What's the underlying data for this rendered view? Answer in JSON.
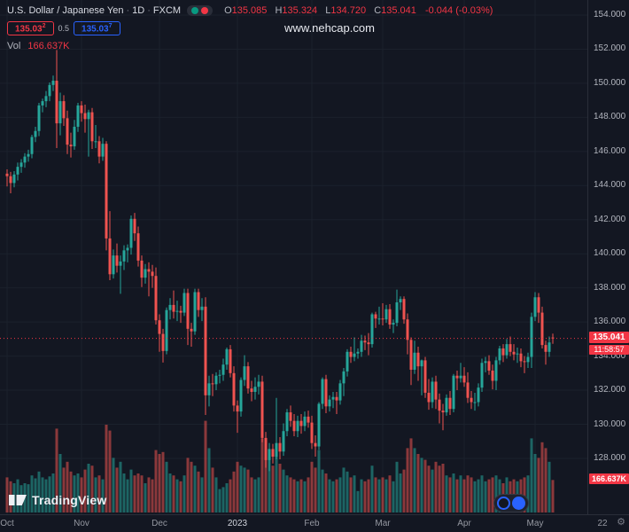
{
  "header": {
    "symbol": "U.S. Dollar / Japanese Yen",
    "sep": "·",
    "interval": "1D",
    "exchange": "FXCM",
    "ohlc": {
      "o_label": "O",
      "o": "135.085",
      "h_label": "H",
      "h": "135.324",
      "l_label": "L",
      "l": "134.720",
      "c_label": "C",
      "c": "135.041",
      "change": "-0.044 (-0.03%)"
    },
    "bid": {
      "main": "135.03",
      "sup": "2"
    },
    "spread": "0.5",
    "ask": {
      "main": "135.03",
      "sup": "7"
    },
    "vol_label": "Vol",
    "vol_value": "166.637K"
  },
  "watermark": "www.nehcap.com",
  "logo": {
    "text": "TradingView"
  },
  "price_axis": {
    "labels": [
      {
        "text": "154.000",
        "value": 154
      },
      {
        "text": "152.000",
        "value": 152
      },
      {
        "text": "150.000",
        "value": 150
      },
      {
        "text": "148.000",
        "value": 148
      },
      {
        "text": "146.000",
        "value": 146
      },
      {
        "text": "144.000",
        "value": 144
      },
      {
        "text": "142.000",
        "value": 142
      },
      {
        "text": "140.000",
        "value": 140
      },
      {
        "text": "138.000",
        "value": 138
      },
      {
        "text": "136.000",
        "value": 136
      },
      {
        "text": "134.000",
        "value": 134
      },
      {
        "text": "132.000",
        "value": 132
      },
      {
        "text": "130.000",
        "value": 130
      },
      {
        "text": "128.000",
        "value": 128
      }
    ],
    "last_price_label": "135.041",
    "countdown": "11:58:57",
    "volume_label": "166.637K"
  },
  "time_axis": {
    "labels": [
      {
        "text": "Oct",
        "bar": 0
      },
      {
        "text": "Nov",
        "bar": 21
      },
      {
        "text": "Dec",
        "bar": 43
      },
      {
        "text": "2023",
        "bar": 65,
        "emphasis": true
      },
      {
        "text": "Feb",
        "bar": 86
      },
      {
        "text": "Mar",
        "bar": 106
      },
      {
        "text": "Apr",
        "bar": 129
      },
      {
        "text": "May",
        "bar": 149
      },
      {
        "text": "22",
        "bar": 168
      }
    ]
  },
  "colors": {
    "bg": "#131722",
    "up": "#26a69a",
    "down": "#ef5350",
    "vol_up": "rgba(38,166,154,0.55)",
    "vol_down": "rgba(239,83,80,0.55)",
    "accent_red": "#f23645",
    "accent_blue": "#2962ff",
    "grid": "#1b212c",
    "axis_text": "#b2b5be"
  },
  "chart_data": {
    "type": "candlestick",
    "title": "U.S. Dollar / Japanese Yen",
    "symbol": "USD/JPY",
    "interval": "1D",
    "exchange": "FXCM",
    "last_price": 135.041,
    "last_ohlc": {
      "o": 135.085,
      "h": 135.324,
      "l": 134.72,
      "c": 135.041,
      "change": -0.044,
      "change_pct": -0.03
    },
    "last_volume_k": 166.637,
    "y_axis_range": [
      126.5,
      154.8
    ],
    "x_range_labels": [
      "Oct",
      "Nov",
      "Dec",
      "2023",
      "Feb",
      "Mar",
      "Apr",
      "May"
    ],
    "volume_pane": true,
    "candles_format": [
      "open",
      "high",
      "low",
      "close",
      "volume_k"
    ],
    "candles": [
      [
        144.7,
        144.95,
        143.95,
        144.55,
        180
      ],
      [
        144.55,
        144.8,
        143.55,
        144.15,
        160
      ],
      [
        144.15,
        144.85,
        143.9,
        144.65,
        150
      ],
      [
        144.65,
        145.35,
        144.3,
        145.1,
        170
      ],
      [
        145.1,
        145.55,
        144.75,
        145.35,
        140
      ],
      [
        145.35,
        145.9,
        145.05,
        145.7,
        150
      ],
      [
        145.7,
        146.1,
        145.4,
        145.85,
        145
      ],
      [
        145.85,
        146.98,
        145.6,
        146.85,
        190
      ],
      [
        146.85,
        147.45,
        146.55,
        147.2,
        175
      ],
      [
        147.2,
        148.85,
        146.9,
        148.7,
        210
      ],
      [
        148.7,
        149.1,
        148.3,
        148.95,
        180
      ],
      [
        148.95,
        149.55,
        148.6,
        149.25,
        170
      ],
      [
        149.25,
        150.05,
        148.95,
        149.9,
        185
      ],
      [
        149.9,
        150.45,
        149.55,
        150.15,
        200
      ],
      [
        150.15,
        151.95,
        146.2,
        147.65,
        430
      ],
      [
        147.65,
        149.45,
        146.95,
        148.95,
        300
      ],
      [
        148.95,
        149.3,
        147.5,
        147.95,
        230
      ],
      [
        147.95,
        148.4,
        145.85,
        146.4,
        260
      ],
      [
        146.4,
        147.1,
        145.65,
        146.3,
        210
      ],
      [
        146.3,
        147.85,
        146.1,
        147.45,
        190
      ],
      [
        147.45,
        148.85,
        147.15,
        148.7,
        200
      ],
      [
        148.7,
        148.95,
        147.75,
        148.25,
        180
      ],
      [
        148.25,
        148.75,
        147.1,
        147.9,
        220
      ],
      [
        147.9,
        148.45,
        145.7,
        148.3,
        250
      ],
      [
        148.3,
        148.55,
        146.15,
        146.6,
        240
      ],
      [
        146.6,
        147.55,
        146.2,
        146.6,
        180
      ],
      [
        146.6,
        146.9,
        145.3,
        145.7,
        190
      ],
      [
        145.7,
        146.8,
        145.45,
        146.45,
        170
      ],
      [
        146.45,
        146.6,
        140.2,
        140.9,
        450
      ],
      [
        140.9,
        142.5,
        138.45,
        138.8,
        420
      ],
      [
        138.8,
        140.25,
        138.55,
        139.9,
        280
      ],
      [
        139.9,
        140.6,
        138.9,
        139.3,
        230
      ],
      [
        139.3,
        139.9,
        137.65,
        139.55,
        260
      ],
      [
        139.55,
        140.5,
        139.05,
        140.2,
        200
      ],
      [
        140.2,
        140.55,
        139.5,
        140.35,
        170
      ],
      [
        140.35,
        142.25,
        139.95,
        142.05,
        220
      ],
      [
        142.05,
        142.4,
        140.75,
        141.2,
        190
      ],
      [
        141.2,
        141.6,
        139.25,
        139.6,
        200
      ],
      [
        139.6,
        139.9,
        138.05,
        138.6,
        190
      ],
      [
        138.6,
        139.4,
        138.25,
        139.1,
        150
      ],
      [
        139.1,
        139.5,
        137.5,
        138.95,
        180
      ],
      [
        138.95,
        139.35,
        138.0,
        138.7,
        170
      ],
      [
        138.7,
        139.2,
        135.85,
        136.1,
        320
      ],
      [
        136.1,
        136.45,
        134.25,
        135.3,
        300
      ],
      [
        135.3,
        135.6,
        133.62,
        134.3,
        310
      ],
      [
        134.3,
        136.85,
        134.1,
        136.7,
        260
      ],
      [
        136.7,
        137.4,
        136.15,
        137.0,
        200
      ],
      [
        137.0,
        137.85,
        136.2,
        136.6,
        190
      ],
      [
        136.6,
        137.25,
        136.05,
        136.65,
        170
      ],
      [
        136.65,
        136.95,
        135.95,
        136.55,
        160
      ],
      [
        136.55,
        137.95,
        136.35,
        137.7,
        190
      ],
      [
        137.7,
        137.95,
        134.65,
        135.6,
        280
      ],
      [
        135.6,
        135.95,
        134.55,
        135.45,
        260
      ],
      [
        135.45,
        137.95,
        135.25,
        137.75,
        240
      ],
      [
        137.75,
        137.95,
        136.3,
        136.7,
        210
      ],
      [
        136.7,
        137.4,
        136.05,
        136.9,
        180
      ],
      [
        136.9,
        137.45,
        130.55,
        131.7,
        470
      ],
      [
        131.7,
        132.85,
        131.05,
        132.4,
        330
      ],
      [
        132.4,
        132.95,
        131.65,
        132.35,
        230
      ],
      [
        132.35,
        133.05,
        132.0,
        132.85,
        180
      ],
      [
        132.85,
        133.2,
        132.4,
        132.9,
        120
      ],
      [
        132.9,
        133.85,
        132.55,
        133.5,
        130
      ],
      [
        133.5,
        134.5,
        133.2,
        134.4,
        150
      ],
      [
        134.4,
        134.65,
        132.75,
        133.0,
        170
      ],
      [
        133.0,
        133.4,
        130.75,
        131.1,
        210
      ],
      [
        131.1,
        131.4,
        129.5,
        130.75,
        260
      ],
      [
        130.75,
        132.75,
        130.45,
        132.6,
        240
      ],
      [
        132.6,
        134.05,
        132.25,
        133.4,
        230
      ],
      [
        133.4,
        133.65,
        131.8,
        132.1,
        220
      ],
      [
        132.1,
        132.55,
        131.35,
        131.9,
        180
      ],
      [
        131.9,
        132.75,
        131.45,
        132.2,
        170
      ],
      [
        132.2,
        132.9,
        131.75,
        132.5,
        180
      ],
      [
        132.5,
        132.85,
        128.95,
        129.2,
        380
      ],
      [
        129.2,
        129.55,
        127.45,
        127.9,
        360
      ],
      [
        127.9,
        128.9,
        127.25,
        128.55,
        300
      ],
      [
        128.55,
        128.85,
        127.7,
        128.1,
        240
      ],
      [
        128.1,
        131.55,
        127.95,
        128.9,
        330
      ],
      [
        128.9,
        129.25,
        127.95,
        128.4,
        250
      ],
      [
        128.4,
        130.05,
        128.15,
        129.6,
        220
      ],
      [
        129.6,
        130.9,
        129.3,
        130.7,
        190
      ],
      [
        130.7,
        131.1,
        129.85,
        130.2,
        180
      ],
      [
        130.2,
        130.6,
        129.3,
        129.6,
        170
      ],
      [
        129.6,
        130.5,
        129.25,
        130.2,
        160
      ],
      [
        130.2,
        130.6,
        129.45,
        129.9,
        170
      ],
      [
        129.9,
        130.75,
        129.6,
        130.45,
        160
      ],
      [
        130.45,
        130.8,
        129.8,
        130.1,
        180
      ],
      [
        130.1,
        130.5,
        128.55,
        128.9,
        260
      ],
      [
        128.9,
        129.35,
        128.1,
        128.7,
        230
      ],
      [
        128.7,
        131.3,
        128.5,
        131.2,
        320
      ],
      [
        131.2,
        132.75,
        130.9,
        132.65,
        220
      ],
      [
        132.65,
        132.9,
        130.65,
        131.05,
        200
      ],
      [
        131.05,
        131.7,
        130.75,
        131.45,
        170
      ],
      [
        131.45,
        131.9,
        130.95,
        131.6,
        160
      ],
      [
        131.6,
        131.9,
        130.6,
        131.4,
        170
      ],
      [
        131.4,
        132.6,
        131.15,
        132.4,
        180
      ],
      [
        132.4,
        133.3,
        131.65,
        133.1,
        230
      ],
      [
        133.1,
        134.4,
        132.8,
        134.25,
        210
      ],
      [
        134.25,
        134.55,
        133.6,
        133.95,
        180
      ],
      [
        133.95,
        135.1,
        133.7,
        134.15,
        190
      ],
      [
        134.15,
        134.45,
        133.85,
        134.25,
        110
      ],
      [
        134.25,
        135.25,
        133.95,
        134.9,
        170
      ],
      [
        134.9,
        135.2,
        134.35,
        134.8,
        160
      ],
      [
        134.8,
        135.35,
        134.05,
        134.7,
        170
      ],
      [
        134.7,
        136.55,
        134.5,
        136.45,
        240
      ],
      [
        136.45,
        136.6,
        135.65,
        136.2,
        180
      ],
      [
        136.2,
        136.9,
        135.85,
        136.2,
        170
      ],
      [
        136.2,
        137.1,
        135.8,
        136.15,
        180
      ],
      [
        136.15,
        137.0,
        135.95,
        136.75,
        170
      ],
      [
        136.75,
        137.05,
        135.6,
        135.85,
        190
      ],
      [
        135.85,
        136.15,
        135.35,
        135.95,
        160
      ],
      [
        135.95,
        137.9,
        135.75,
        137.15,
        260
      ],
      [
        137.15,
        137.5,
        136.7,
        137.35,
        200
      ],
      [
        137.35,
        137.5,
        135.9,
        136.15,
        220
      ],
      [
        136.15,
        136.5,
        134.1,
        134.95,
        330
      ],
      [
        134.95,
        135.1,
        132.3,
        133.2,
        380
      ],
      [
        133.2,
        134.9,
        132.95,
        134.2,
        330
      ],
      [
        134.2,
        134.55,
        132.55,
        133.4,
        300
      ],
      [
        133.4,
        133.8,
        131.7,
        133.75,
        280
      ],
      [
        133.75,
        133.95,
        131.55,
        131.85,
        270
      ],
      [
        131.85,
        132.65,
        130.85,
        131.3,
        240
      ],
      [
        131.3,
        132.75,
        130.95,
        132.5,
        220
      ],
      [
        132.5,
        132.85,
        130.9,
        131.45,
        260
      ],
      [
        131.45,
        131.8,
        130.05,
        130.8,
        240
      ],
      [
        130.8,
        131.2,
        129.65,
        130.7,
        250
      ],
      [
        130.7,
        131.75,
        130.5,
        131.55,
        190
      ],
      [
        131.55,
        131.95,
        130.55,
        130.9,
        180
      ],
      [
        130.9,
        132.95,
        130.7,
        132.85,
        200
      ],
      [
        132.85,
        133.15,
        132.0,
        132.7,
        170
      ],
      [
        132.7,
        133.6,
        132.45,
        132.85,
        190
      ],
      [
        132.85,
        133.35,
        132.2,
        132.45,
        170
      ],
      [
        132.45,
        133.05,
        131.25,
        131.55,
        190
      ],
      [
        131.55,
        131.95,
        130.9,
        131.3,
        180
      ],
      [
        131.3,
        131.85,
        130.8,
        131.3,
        160
      ],
      [
        131.3,
        132.4,
        131.05,
        132.15,
        170
      ],
      [
        132.15,
        133.85,
        131.9,
        133.6,
        190
      ],
      [
        133.6,
        133.95,
        133.05,
        133.7,
        160
      ],
      [
        133.7,
        134.05,
        132.9,
        133.15,
        170
      ],
      [
        133.15,
        133.5,
        132.05,
        132.55,
        180
      ],
      [
        132.55,
        133.95,
        132.0,
        133.75,
        190
      ],
      [
        133.75,
        134.6,
        133.5,
        134.45,
        170
      ],
      [
        134.45,
        134.7,
        133.65,
        134.05,
        150
      ],
      [
        134.05,
        135.0,
        133.85,
        134.7,
        180
      ],
      [
        134.7,
        135.15,
        134.0,
        134.25,
        160
      ],
      [
        134.25,
        134.7,
        133.75,
        134.1,
        170
      ],
      [
        134.1,
        134.5,
        133.6,
        134.15,
        160
      ],
      [
        134.15,
        134.45,
        133.35,
        133.7,
        170
      ],
      [
        133.7,
        134.0,
        133.0,
        133.65,
        180
      ],
      [
        133.65,
        134.2,
        133.3,
        133.95,
        190
      ],
      [
        133.95,
        136.55,
        133.3,
        136.3,
        380
      ],
      [
        136.3,
        137.75,
        136.05,
        137.45,
        300
      ],
      [
        137.45,
        137.7,
        135.95,
        136.55,
        280
      ],
      [
        136.55,
        136.9,
        134.45,
        134.65,
        360
      ],
      [
        134.65,
        134.9,
        133.5,
        134.25,
        330
      ],
      [
        134.25,
        135.15,
        133.95,
        134.8,
        260
      ],
      [
        135.09,
        135.32,
        134.72,
        135.04,
        166.637
      ]
    ]
  }
}
